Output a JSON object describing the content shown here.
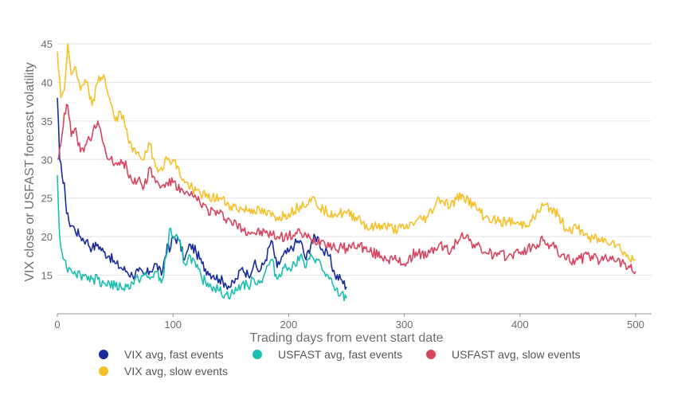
{
  "chart_data": {
    "type": "line",
    "title": "",
    "xlabel": "Trading days from event start date",
    "ylabel": "VIX close or USFAST forecast volatility",
    "xlim": [
      0,
      500
    ],
    "ylim": [
      10,
      45
    ],
    "xticks": [
      0,
      100,
      200,
      300,
      400,
      500
    ],
    "yticks": [
      15,
      20,
      25,
      30,
      35,
      40,
      45
    ],
    "grid": "horizontal",
    "legend_position": "bottom",
    "series": [
      {
        "name": "VIX avg, fast events",
        "color": "#1a2b9c",
        "x": [
          0,
          2,
          4,
          6,
          8,
          10,
          15,
          20,
          25,
          30,
          35,
          40,
          45,
          50,
          55,
          60,
          65,
          70,
          75,
          80,
          85,
          90,
          95,
          97,
          100,
          105,
          110,
          115,
          120,
          125,
          130,
          135,
          140,
          145,
          150,
          155,
          160,
          165,
          170,
          175,
          180,
          185,
          190,
          195,
          200,
          205,
          210,
          215,
          220,
          225,
          230,
          235,
          240,
          245,
          250
        ],
        "values": [
          38,
          30,
          28,
          27,
          23,
          22,
          21,
          20,
          19.5,
          18.5,
          19,
          18,
          17.5,
          16.5,
          16,
          15.5,
          15,
          15.5,
          15,
          15.5,
          16.5,
          15,
          19,
          18,
          20,
          19.5,
          17,
          19,
          18,
          16.5,
          15.5,
          15,
          14.5,
          14,
          13.5,
          14.5,
          16,
          15,
          16.5,
          15.5,
          17,
          19.5,
          16,
          17.5,
          18,
          19,
          19.5,
          17,
          19.5,
          20,
          18,
          17.5,
          15,
          14.5,
          13.5
        ]
      },
      {
        "name": "USFAST avg, fast events",
        "color": "#1abfb0",
        "x": [
          0,
          2,
          4,
          6,
          8,
          10,
          15,
          20,
          25,
          30,
          35,
          40,
          45,
          50,
          55,
          60,
          65,
          70,
          75,
          80,
          85,
          90,
          95,
          97,
          100,
          105,
          110,
          115,
          120,
          125,
          130,
          135,
          140,
          145,
          150,
          155,
          160,
          165,
          170,
          175,
          180,
          185,
          190,
          195,
          200,
          205,
          210,
          215,
          220,
          225,
          230,
          235,
          240,
          245,
          250
        ],
        "values": [
          28,
          20,
          18,
          17,
          16,
          16,
          15.5,
          15,
          15,
          14.5,
          14.5,
          14,
          14,
          13.5,
          13.5,
          13.5,
          14,
          14.5,
          15,
          14.5,
          15.5,
          14,
          18,
          21,
          20,
          19.5,
          16.5,
          17.5,
          16,
          14.5,
          14,
          13.5,
          13,
          12.5,
          12.5,
          13,
          14,
          13.5,
          14.5,
          14,
          15.5,
          17,
          14.5,
          16,
          16,
          16.5,
          17.5,
          16,
          17.5,
          17,
          15.5,
          14.5,
          13,
          12.5,
          12
        ]
      },
      {
        "name": "USFAST avg, slow events",
        "color": "#d6455f",
        "x": [
          0,
          3,
          6,
          9,
          12,
          15,
          20,
          25,
          30,
          35,
          40,
          45,
          50,
          55,
          60,
          65,
          70,
          75,
          80,
          85,
          90,
          95,
          100,
          110,
          120,
          130,
          140,
          150,
          160,
          170,
          180,
          190,
          200,
          210,
          220,
          230,
          240,
          250,
          260,
          270,
          280,
          290,
          300,
          310,
          320,
          330,
          340,
          350,
          360,
          370,
          380,
          390,
          400,
          410,
          420,
          430,
          440,
          450,
          460,
          470,
          480,
          490,
          495,
          500
        ],
        "values": [
          30,
          32,
          36,
          37,
          33,
          34,
          31,
          32,
          33,
          35,
          32,
          30,
          29.5,
          30,
          29,
          27,
          27.5,
          26.5,
          29,
          27,
          26.5,
          27,
          27,
          25.5,
          25,
          23.5,
          23,
          22,
          21,
          20.5,
          20.5,
          20,
          20,
          20.5,
          19.5,
          19.5,
          18.5,
          18.5,
          19,
          18,
          17.5,
          17,
          16.5,
          18,
          17.5,
          19,
          18,
          20.5,
          19,
          18,
          17.5,
          17.5,
          18,
          18.5,
          19.5,
          18.5,
          17,
          17,
          17.5,
          17,
          17.5,
          16.5,
          16,
          15.5
        ]
      },
      {
        "name": "VIX avg, slow events",
        "color": "#f5c02a",
        "x": [
          0,
          3,
          6,
          9,
          12,
          15,
          20,
          25,
          30,
          35,
          40,
          45,
          50,
          55,
          60,
          65,
          70,
          75,
          80,
          85,
          90,
          95,
          100,
          110,
          120,
          130,
          140,
          150,
          160,
          170,
          180,
          190,
          200,
          210,
          220,
          230,
          240,
          250,
          260,
          270,
          280,
          290,
          300,
          310,
          320,
          330,
          340,
          350,
          360,
          370,
          380,
          390,
          400,
          410,
          420,
          430,
          440,
          450,
          460,
          470,
          480,
          490,
          495,
          500
        ],
        "values": [
          44,
          38,
          39,
          45,
          41,
          42,
          39,
          40,
          37,
          40,
          41,
          38,
          35,
          36,
          34,
          31,
          31,
          30,
          32,
          29,
          29,
          30,
          30,
          27,
          26,
          25,
          25,
          24,
          23.5,
          23.5,
          23,
          22.5,
          23,
          24,
          25,
          23.5,
          23,
          23,
          22.5,
          21,
          21.5,
          21,
          21,
          22,
          22.5,
          25,
          24,
          25.5,
          24,
          22.5,
          22,
          22,
          21.5,
          22,
          24,
          23.5,
          21,
          21,
          20,
          19.5,
          19.5,
          18,
          17,
          17
        ]
      }
    ]
  }
}
